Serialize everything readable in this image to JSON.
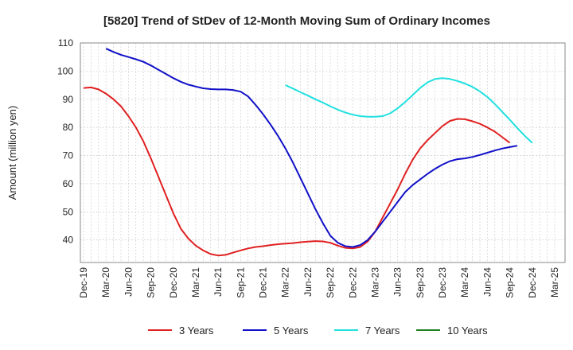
{
  "chart_data": {
    "type": "line",
    "title": "[5820]  Trend of StDev of 12-Month Moving Sum of Ordinary Incomes",
    "xlabel": "",
    "ylabel": "Amount (million yen)",
    "ylim": [
      32,
      110
    ],
    "y_ticks": [
      40,
      50,
      60,
      70,
      80,
      90,
      100,
      110
    ],
    "x_ticks": [
      "Dec-19",
      "Mar-20",
      "Jun-20",
      "Sep-20",
      "Dec-20",
      "Mar-21",
      "Jun-21",
      "Sep-21",
      "Dec-21",
      "Mar-22",
      "Jun-22",
      "Sep-22",
      "Dec-22",
      "Mar-23",
      "Jun-23",
      "Sep-23",
      "Dec-23",
      "Mar-24",
      "Jun-24",
      "Sep-24",
      "Dec-24",
      "Mar-25"
    ],
    "grid": true,
    "legend_position": "bottom",
    "series": [
      {
        "name": "3 Years",
        "color": "#e02020",
        "start": "Dec-19",
        "values": [
          94,
          94.2,
          93.5,
          92,
          90,
          87.5,
          84,
          80,
          75,
          69,
          62.5,
          56,
          49.5,
          44,
          40.5,
          38,
          36.3,
          35,
          34.5,
          34.7,
          35.5,
          36.3,
          37,
          37.5,
          37.8,
          38.2,
          38.5,
          38.7,
          38.9,
          39.2,
          39.4,
          39.6,
          39.5,
          39,
          38,
          37.2,
          37,
          37.5,
          39.5,
          43,
          48,
          53,
          58,
          63.5,
          68.5,
          72.5,
          75.5,
          78,
          80.5,
          82.3,
          83,
          82.9,
          82.2,
          81.3,
          80,
          78.5,
          76.5,
          74.5
        ]
      },
      {
        "name": "5 Years",
        "color": "#1010c8",
        "start": "Mar-20",
        "values": [
          108,
          106.8,
          105.8,
          105,
          104.2,
          103.3,
          102,
          100.5,
          99,
          97.5,
          96.2,
          95.2,
          94.5,
          93.9,
          93.6,
          93.5,
          93.5,
          93.3,
          92.7,
          91,
          88,
          84.7,
          81,
          77,
          72.5,
          67.5,
          62,
          56.5,
          51,
          46,
          41.5,
          39,
          37.8,
          37.5,
          38.2,
          40,
          43,
          46.5,
          50,
          53.5,
          57,
          59.5,
          61.5,
          63.5,
          65.3,
          66.8,
          68,
          68.7,
          69,
          69.5,
          70.2,
          71,
          71.8,
          72.5,
          73,
          73.5
        ]
      },
      {
        "name": "7 Years",
        "color": "#20e0e0",
        "start": "Mar-22",
        "values": [
          95,
          93.8,
          92.5,
          91.3,
          90,
          88.8,
          87.5,
          86.3,
          85.3,
          84.5,
          84,
          83.8,
          83.8,
          84,
          85,
          86.8,
          89,
          91.5,
          94,
          96,
          97.2,
          97.5,
          97.2,
          96.5,
          95.6,
          94.4,
          92.8,
          90.8,
          88.3,
          85.5,
          82.7,
          79.8,
          77,
          74.5
        ]
      },
      {
        "name": "10 Years",
        "color": "#208020",
        "start": "Mar-25",
        "values": []
      }
    ]
  }
}
